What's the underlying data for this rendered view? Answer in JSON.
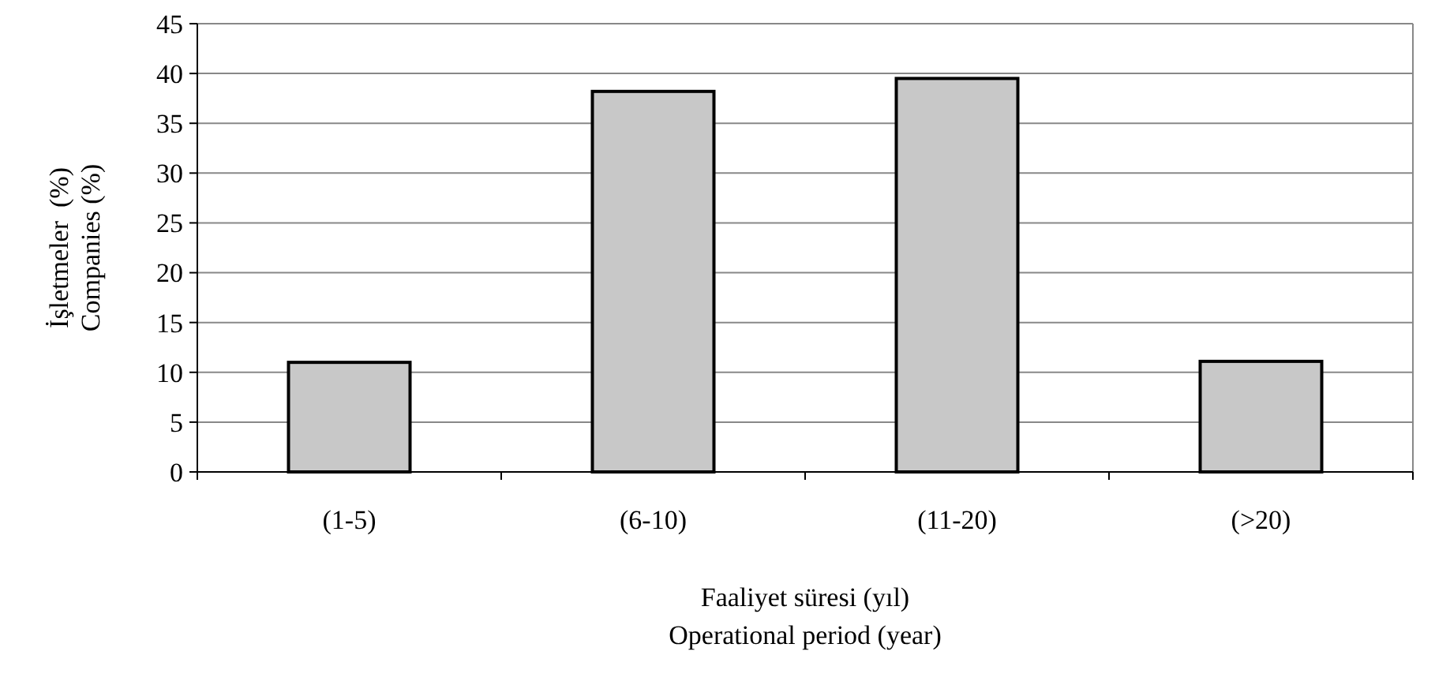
{
  "chart_data": {
    "type": "bar",
    "xlabel": "Faaliyet süresi (yıl)\nOperational period (year)",
    "ylabel": "İşletmeler  (%)\nCompanies (%)",
    "categories": [
      "(1-5)",
      "(6-10)",
      "(11-20)",
      "(>20)"
    ],
    "values": [
      11,
      38.2,
      39.5,
      11.1
    ],
    "color": "#c8c8c8",
    "ylim": [
      0,
      45
    ],
    "yticks": [
      0,
      5,
      10,
      15,
      20,
      25,
      30,
      35,
      40,
      45
    ],
    "grid": "y"
  }
}
